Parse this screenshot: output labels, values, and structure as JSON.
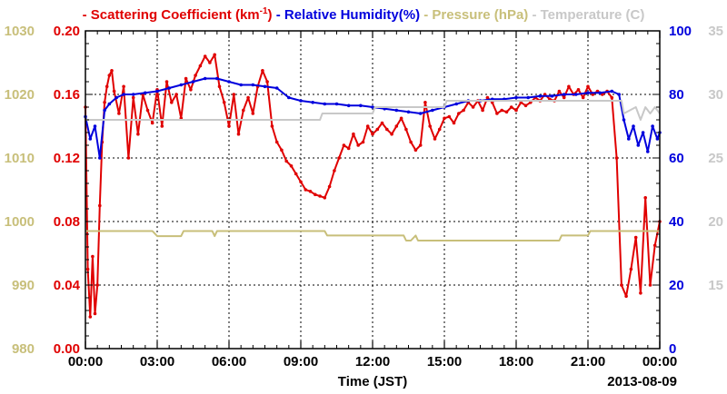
{
  "chart_data": {
    "type": "line",
    "legend": [
      {
        "name": "Scattering Coefficient (km",
        "sup": "-1",
        "close": ")",
        "color": "#e00000",
        "dash": "-"
      },
      {
        "name": "Relative Humidity(%)",
        "color": "#0000dd",
        "dash": "-"
      },
      {
        "name": "Pressure (hPa)",
        "color": "#c8bf7a",
        "dash": "-"
      },
      {
        "name": "Temperature (C)",
        "color": "#c8c8c8",
        "dash": "-"
      }
    ],
    "xlabel": "Time (JST)",
    "date_label": "2013-08-09",
    "x_ticks": [
      "00:00",
      "03:00",
      "06:00",
      "09:00",
      "12:00",
      "15:00",
      "18:00",
      "21:00",
      "00:00"
    ],
    "xlim": [
      0,
      24
    ],
    "grid": true,
    "axes": {
      "pressure": {
        "ticks": [
          "980",
          "990",
          "1000",
          "1010",
          "1020",
          "1030"
        ],
        "ylim": [
          980,
          1030
        ],
        "color": "#c8bf7a"
      },
      "scattering": {
        "ticks": [
          "0.00",
          "0.04",
          "0.08",
          "0.12",
          "0.16",
          "0.20"
        ],
        "ylim": [
          0,
          0.2
        ],
        "color": "#e00000"
      },
      "humidity": {
        "ticks": [
          "0",
          "20",
          "40",
          "60",
          "80",
          "100"
        ],
        "ylim": [
          0,
          100
        ],
        "color": "#0000dd"
      },
      "temperature": {
        "ticks": [
          "15",
          "20",
          "25",
          "30",
          "35"
        ],
        "ylim": [
          10,
          35
        ],
        "color": "#c8c8c8"
      }
    },
    "series": [
      {
        "name": "Scattering Coefficient",
        "axis": "scattering",
        "color": "#e00000",
        "markers": true,
        "x": [
          0,
          0.1,
          0.2,
          0.3,
          0.4,
          0.5,
          0.6,
          0.7,
          0.8,
          0.9,
          1.0,
          1.1,
          1.2,
          1.4,
          1.6,
          1.8,
          2.0,
          2.2,
          2.4,
          2.6,
          2.8,
          3.0,
          3.2,
          3.4,
          3.6,
          3.8,
          4.0,
          4.2,
          4.4,
          4.6,
          4.8,
          5.0,
          5.2,
          5.4,
          5.6,
          5.8,
          6.0,
          6.2,
          6.4,
          6.6,
          6.8,
          7.0,
          7.2,
          7.4,
          7.6,
          7.8,
          8.0,
          8.2,
          8.4,
          8.6,
          8.8,
          9.0,
          9.2,
          9.4,
          9.6,
          9.8,
          10.0,
          10.2,
          10.4,
          10.6,
          10.8,
          11.0,
          11.2,
          11.4,
          11.6,
          11.8,
          12.0,
          12.2,
          12.4,
          12.6,
          12.8,
          13.0,
          13.2,
          13.4,
          13.6,
          13.8,
          14.0,
          14.2,
          14.4,
          14.6,
          14.8,
          15.0,
          15.2,
          15.4,
          15.6,
          15.8,
          16.0,
          16.2,
          16.4,
          16.6,
          16.8,
          17.0,
          17.2,
          17.4,
          17.6,
          17.8,
          18.0,
          18.2,
          18.4,
          18.6,
          18.8,
          19.0,
          19.2,
          19.4,
          19.6,
          19.8,
          20.0,
          20.2,
          20.4,
          20.6,
          20.8,
          21.0,
          21.2,
          21.4,
          21.6,
          21.8,
          22.0,
          22.2,
          22.4,
          22.6,
          22.8,
          23.0,
          23.2,
          23.4,
          23.6,
          23.8,
          24.0
        ],
        "values": [
          0.152,
          0.05,
          0.02,
          0.058,
          0.022,
          0.04,
          0.09,
          0.13,
          0.155,
          0.165,
          0.172,
          0.175,
          0.162,
          0.148,
          0.165,
          0.12,
          0.158,
          0.135,
          0.16,
          0.15,
          0.142,
          0.163,
          0.14,
          0.168,
          0.155,
          0.16,
          0.145,
          0.17,
          0.163,
          0.172,
          0.178,
          0.184,
          0.18,
          0.185,
          0.165,
          0.155,
          0.14,
          0.16,
          0.135,
          0.15,
          0.158,
          0.148,
          0.165,
          0.175,
          0.168,
          0.14,
          0.13,
          0.125,
          0.118,
          0.115,
          0.11,
          0.105,
          0.1,
          0.099,
          0.097,
          0.096,
          0.095,
          0.102,
          0.112,
          0.12,
          0.128,
          0.126,
          0.135,
          0.128,
          0.13,
          0.14,
          0.135,
          0.138,
          0.142,
          0.138,
          0.135,
          0.14,
          0.145,
          0.138,
          0.13,
          0.125,
          0.128,
          0.155,
          0.14,
          0.132,
          0.138,
          0.145,
          0.146,
          0.142,
          0.148,
          0.15,
          0.155,
          0.152,
          0.156,
          0.15,
          0.158,
          0.155,
          0.148,
          0.15,
          0.149,
          0.152,
          0.15,
          0.155,
          0.153,
          0.155,
          0.158,
          0.156,
          0.16,
          0.157,
          0.156,
          0.162,
          0.158,
          0.165,
          0.16,
          0.163,
          0.158,
          0.165,
          0.16,
          0.162,
          0.16,
          0.162,
          0.158,
          0.12,
          0.04,
          0.033,
          0.05,
          0.07,
          0.035,
          0.095,
          0.04,
          0.065,
          0.08
        ]
      },
      {
        "name": "Relative Humidity",
        "axis": "humidity",
        "color": "#0000dd",
        "markers": true,
        "x": [
          0,
          0.2,
          0.4,
          0.6,
          0.8,
          1.0,
          1.3,
          1.6,
          2.0,
          2.5,
          3.0,
          3.5,
          4.0,
          4.5,
          5.0,
          5.5,
          6.0,
          6.5,
          7.0,
          7.5,
          8.0,
          8.5,
          9.0,
          9.5,
          10.0,
          10.5,
          11.0,
          11.5,
          12.0,
          12.5,
          13.0,
          13.5,
          14.0,
          14.5,
          15.0,
          15.5,
          16.0,
          16.5,
          17.0,
          17.5,
          18.0,
          18.5,
          19.0,
          19.5,
          20.0,
          20.5,
          21.0,
          21.5,
          22.0,
          22.3,
          22.5,
          22.7,
          22.9,
          23.1,
          23.3,
          23.5,
          23.7,
          23.9,
          24.0
        ],
        "values": [
          73,
          66,
          70,
          60,
          75,
          77,
          79,
          80,
          80,
          80.5,
          81,
          82,
          83,
          84,
          85,
          85,
          84,
          83,
          83,
          82.5,
          82,
          79,
          78,
          77.5,
          77,
          77,
          76.5,
          76.5,
          76,
          75.5,
          75,
          74.5,
          74,
          75,
          76,
          77,
          78,
          78,
          78.5,
          78.5,
          79,
          79,
          79.5,
          79.5,
          80,
          80,
          80.5,
          80.5,
          81,
          80,
          72,
          66,
          70,
          64,
          68,
          62,
          70,
          66,
          68
        ]
      },
      {
        "name": "Pressure",
        "axis": "pressure",
        "color": "#c8bf7a",
        "markers": false,
        "x": [
          0,
          2.8,
          3.0,
          4.0,
          4.1,
          5.3,
          5.4,
          5.5,
          10.0,
          10.1,
          13.3,
          13.4,
          13.6,
          13.8,
          13.9,
          16.0,
          18.0,
          19.8,
          19.9,
          21.0,
          21.1,
          24.0
        ],
        "values": [
          998.5,
          998.5,
          997.7,
          997.7,
          998.5,
          998.5,
          997.7,
          998.5,
          998.5,
          997.8,
          997.8,
          997,
          997,
          997.8,
          997,
          997,
          997,
          997,
          997.8,
          997.8,
          998.5,
          998.5
        ]
      },
      {
        "name": "Temperature",
        "axis": "temperature",
        "color": "#c8c8c8",
        "markers": false,
        "x": [
          0,
          9.8,
          9.9,
          12.0,
          12.1,
          15.0,
          15.1,
          17.0,
          17.1,
          22.4,
          22.5,
          23.0,
          23.2,
          23.4,
          23.6,
          23.8,
          24.0
        ],
        "values": [
          28,
          28,
          28.5,
          28.5,
          29,
          29,
          29.5,
          29.5,
          29.5,
          29.5,
          28.5,
          29,
          28,
          29,
          28.5,
          29,
          28.5
        ]
      }
    ]
  }
}
